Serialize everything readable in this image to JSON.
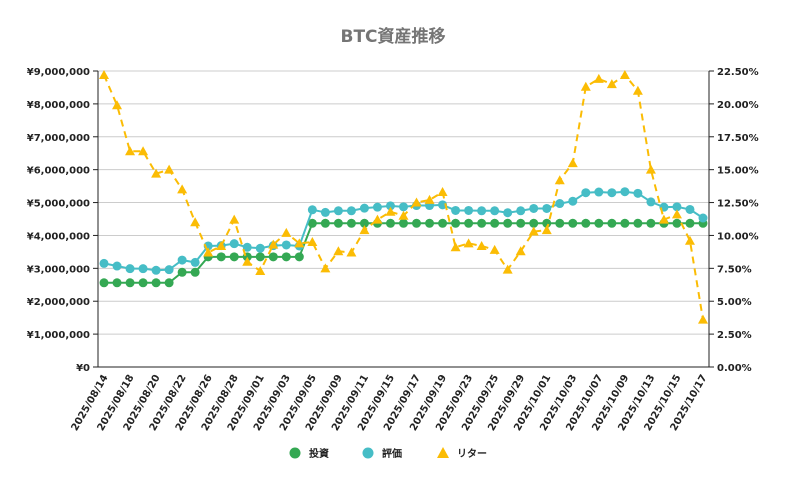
{
  "chart_data": {
    "type": "line",
    "title": "BTC資産推移",
    "x_labels": [
      "2025/08/14",
      "2025/08/18",
      "2025/08/20",
      "2025/08/22",
      "2025/08/26",
      "2025/08/28",
      "2025/09/01",
      "2025/09/03",
      "2025/09/05",
      "2025/09/09",
      "2025/09/11",
      "2025/09/15",
      "2025/09/17",
      "2025/09/19",
      "2025/09/23",
      "2025/09/25",
      "2025/09/29",
      "2025/10/01",
      "2025/10/03",
      "2025/10/07",
      "2025/10/09",
      "2025/10/13",
      "2025/10/15",
      "2025/10/17"
    ],
    "x_label_every": 2,
    "y_left": {
      "min": 0,
      "max": 9000000,
      "step": 1000000,
      "ticks": [
        "¥0",
        "¥1,000,000",
        "¥2,000,000",
        "¥3,000,000",
        "¥4,000,000",
        "¥5,000,000",
        "¥6,000,000",
        "¥7,000,000",
        "¥8,000,000",
        "¥9,000,000"
      ]
    },
    "y_right": {
      "min": 0,
      "max": 22.5,
      "step": 2.5,
      "ticks": [
        "0.00%",
        "2.50%",
        "5.00%",
        "7.50%",
        "10.00%",
        "12.50%",
        "15.00%",
        "17.50%",
        "20.00%",
        "22.50%"
      ]
    },
    "grid": true,
    "legend_position": "bottom",
    "series": [
      {
        "name": "投資",
        "axis": "left",
        "color": "#34A853",
        "marker": "circle",
        "dashed": false,
        "values": [
          2560000,
          2560000,
          2560000,
          2560000,
          2560000,
          2560000,
          2880000,
          2880000,
          3350000,
          3350000,
          3350000,
          3350000,
          3350000,
          3350000,
          3350000,
          3350000,
          4370000,
          4370000,
          4370000,
          4370000,
          4370000,
          4370000,
          4370000,
          4370000,
          4370000,
          4370000,
          4370000,
          4370000,
          4370000,
          4370000,
          4370000,
          4370000,
          4370000,
          4370000,
          4370000,
          4370000,
          4370000,
          4370000,
          4370000,
          4370000,
          4370000,
          4370000,
          4370000,
          4370000,
          4370000,
          4370000,
          4370000
        ]
      },
      {
        "name": "評価",
        "axis": "left",
        "color": "#46BDC6",
        "marker": "circle",
        "dashed": false,
        "values": [
          3150000,
          3070000,
          2990000,
          2990000,
          2940000,
          2960000,
          3250000,
          3180000,
          3680000,
          3690000,
          3750000,
          3640000,
          3610000,
          3690000,
          3710000,
          3680000,
          4780000,
          4700000,
          4750000,
          4750000,
          4830000,
          4860000,
          4900000,
          4870000,
          4910000,
          4910000,
          4930000,
          4760000,
          4760000,
          4750000,
          4750000,
          4690000,
          4750000,
          4820000,
          4820000,
          4970000,
          5040000,
          5300000,
          5320000,
          5300000,
          5330000,
          5280000,
          5020000,
          4860000,
          4870000,
          4790000,
          4530000
        ]
      },
      {
        "name": "リター",
        "axis": "right",
        "color": "#FBBC04",
        "marker": "triangle",
        "dashed": true,
        "values": [
          22.2,
          19.9,
          16.4,
          16.4,
          14.7,
          15.0,
          13.5,
          11.0,
          8.7,
          9.2,
          11.2,
          8.0,
          7.3,
          9.3,
          10.2,
          9.4,
          9.5,
          7.5,
          8.8,
          8.7,
          10.4,
          11.2,
          11.8,
          11.5,
          12.5,
          12.7,
          13.3,
          9.1,
          9.4,
          9.2,
          8.9,
          7.4,
          8.8,
          10.3,
          10.4,
          14.2,
          15.5,
          21.3,
          21.9,
          21.5,
          22.2,
          21.0,
          15.0,
          11.2,
          11.6,
          9.6,
          3.6
        ]
      }
    ]
  }
}
